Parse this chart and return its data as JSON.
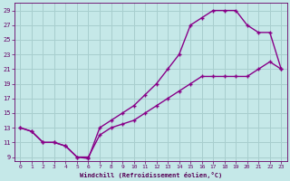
{
  "xlabel": "Windchill (Refroidissement éolien,°C)",
  "bg_color": "#c5e8e8",
  "grid_color": "#a8cece",
  "line_color": "#880088",
  "xlim_min": -0.5,
  "xlim_max": 23.5,
  "ylim_min": 8.5,
  "ylim_max": 30,
  "xticks": [
    0,
    1,
    2,
    3,
    4,
    5,
    6,
    7,
    8,
    9,
    10,
    11,
    12,
    13,
    14,
    15,
    16,
    17,
    18,
    19,
    20,
    21,
    22,
    23
  ],
  "yticks": [
    9,
    11,
    13,
    15,
    17,
    19,
    21,
    23,
    25,
    27,
    29
  ],
  "curve1_x": [
    0,
    1,
    2,
    3,
    4,
    5,
    6,
    7,
    8,
    9,
    10,
    11,
    12,
    13,
    14,
    15,
    16,
    17,
    18,
    19,
    20,
    21,
    22,
    23
  ],
  "curve1_y": [
    13,
    12.5,
    11,
    11,
    10.5,
    9,
    8.8,
    13,
    14,
    15,
    16,
    17.5,
    19,
    21,
    23,
    27,
    28,
    29,
    29,
    29,
    27,
    26,
    26,
    21
  ],
  "curve3_x": [
    0,
    1,
    2,
    3,
    4,
    5,
    6,
    7,
    8,
    9,
    10,
    11,
    12,
    13,
    14,
    15,
    16,
    17,
    18,
    19,
    20,
    21,
    22,
    23
  ],
  "curve3_y": [
    13,
    12.5,
    11,
    11,
    10.5,
    9,
    9,
    12,
    13,
    13.5,
    14,
    15,
    16,
    17,
    18,
    19,
    20,
    20,
    20,
    20,
    20,
    21,
    22,
    21
  ]
}
